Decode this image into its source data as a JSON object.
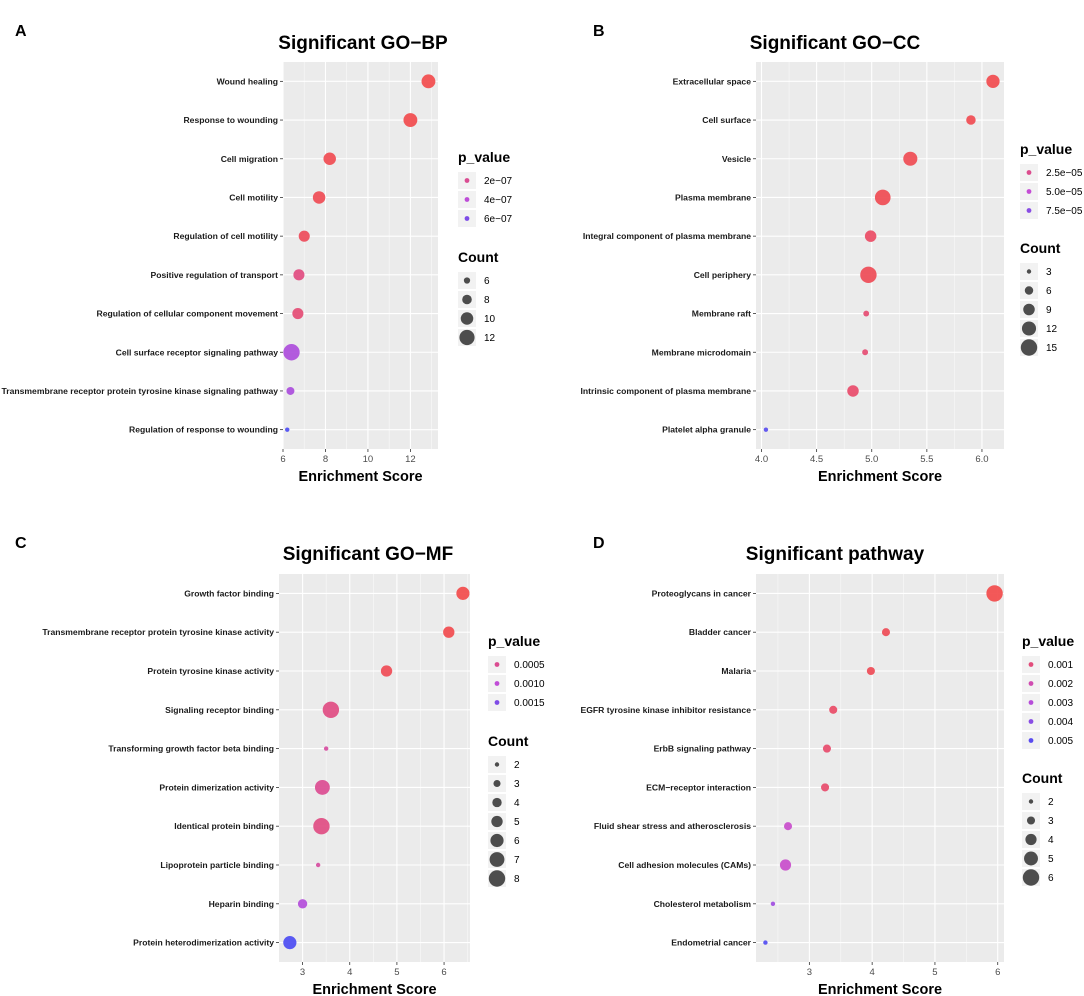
{
  "chart_data": [
    {
      "type": "scatter",
      "panel": "A",
      "title": "Significant GO−BP",
      "xlabel": "Enrichment Score",
      "xlim": [
        6,
        13.3
      ],
      "xticks": [
        6,
        8,
        10,
        12
      ],
      "xtick_labels": [
        "6",
        "8",
        "10",
        "12"
      ],
      "points": [
        {
          "term": "Wound healing",
          "x": 12.85,
          "count": 11,
          "p": 1.3e-08
        },
        {
          "term": "Response to wounding",
          "x": 12.0,
          "count": 11,
          "p": 1.5e-08
        },
        {
          "term": "Cell migration",
          "x": 8.2,
          "count": 10,
          "p": 2.5e-08
        },
        {
          "term": "Cell motility",
          "x": 7.7,
          "count": 10,
          "p": 3.5e-08
        },
        {
          "term": "Regulation of cell motility",
          "x": 7.0,
          "count": 9,
          "p": 5e-08
        },
        {
          "term": "Positive regulation of transport",
          "x": 6.75,
          "count": 9,
          "p": 1.5e-07
        },
        {
          "term": "Regulation of cellular component movement",
          "x": 6.7,
          "count": 9,
          "p": 1.2e-07
        },
        {
          "term": "Cell surface receptor signaling pathway",
          "x": 6.4,
          "count": 13,
          "p": 4.5e-07
        },
        {
          "term": "Transmembrane receptor protein tyrosine kinase signaling pathway",
          "x": 6.35,
          "count": 7,
          "p": 4.6e-07
        },
        {
          "term": "Regulation of response to wounding",
          "x": 6.2,
          "count": 5,
          "p": 7.5e-07
        }
      ],
      "legend": {
        "p_title": "p_value",
        "p_labels": [
          "2e−07",
          "4e−07",
          "6e−07"
        ],
        "p_values": [
          2e-07,
          4e-07,
          6e-07
        ],
        "p_range": [
          1e-08,
          7.5e-07
        ],
        "count_title": "Count",
        "count_labels": [
          "6",
          "8",
          "10",
          "12"
        ],
        "count_values": [
          6,
          8,
          10,
          12
        ],
        "count_range": [
          5,
          13
        ]
      }
    },
    {
      "type": "scatter",
      "panel": "B",
      "title": "Significant GO−CC",
      "xlabel": "Enrichment Score",
      "xlim": [
        3.95,
        6.2
      ],
      "xticks": [
        4.0,
        4.5,
        5.0,
        5.5,
        6.0
      ],
      "xtick_labels": [
        "4.0",
        "4.5",
        "5.0",
        "5.5",
        "6.0"
      ],
      "points": [
        {
          "term": "Extracellular space",
          "x": 6.1,
          "count": 11,
          "p": 2e-06
        },
        {
          "term": "Cell surface",
          "x": 5.9,
          "count": 7,
          "p": 3e-06
        },
        {
          "term": "Vesicle",
          "x": 5.35,
          "count": 12,
          "p": 4e-06
        },
        {
          "term": "Plasma membrane",
          "x": 5.1,
          "count": 14,
          "p": 4e-06
        },
        {
          "term": "Integral component of plasma membrane",
          "x": 4.99,
          "count": 9,
          "p": 1e-05
        },
        {
          "term": "Cell periphery",
          "x": 4.97,
          "count": 15,
          "p": 5e-06
        },
        {
          "term": "Membrane raft",
          "x": 4.95,
          "count": 4,
          "p": 1.5e-05
        },
        {
          "term": "Membrane microdomain",
          "x": 4.94,
          "count": 4,
          "p": 1.5e-05
        },
        {
          "term": "Intrinsic component of plasma membrane",
          "x": 4.83,
          "count": 9,
          "p": 1.2e-05
        },
        {
          "term": "Platelet alpha granule",
          "x": 4.04,
          "count": 3,
          "p": 9.5e-05
        }
      ],
      "legend": {
        "p_title": "p_value",
        "p_labels": [
          "2.5e−05",
          "5.0e−05",
          "7.5e−05"
        ],
        "p_values": [
          2.5e-05,
          5e-05,
          7.5e-05
        ],
        "p_range": [
          1e-06,
          0.0001
        ],
        "count_title": "Count",
        "count_labels": [
          "3",
          "6",
          "9",
          "12",
          "15"
        ],
        "count_values": [
          3,
          6,
          9,
          12,
          15
        ],
        "count_range": [
          3,
          15
        ]
      }
    },
    {
      "type": "scatter",
      "panel": "C",
      "title": "Significant GO−MF",
      "xlabel": "Enrichment Score",
      "xlim": [
        2.5,
        6.55
      ],
      "xticks": [
        3,
        4,
        5,
        6
      ],
      "xtick_labels": [
        "3",
        "4",
        "5",
        "6"
      ],
      "points": [
        {
          "term": "Growth factor binding",
          "x": 6.4,
          "count": 6,
          "p": 3e-05
        },
        {
          "term": "Transmembrane receptor protein tyrosine kinase activity",
          "x": 6.1,
          "count": 5,
          "p": 5e-05
        },
        {
          "term": "Protein tyrosine kinase activity",
          "x": 4.78,
          "count": 5,
          "p": 0.0001
        },
        {
          "term": "Signaling receptor binding",
          "x": 3.6,
          "count": 8,
          "p": 0.0004
        },
        {
          "term": "Transforming growth factor beta binding",
          "x": 3.5,
          "count": 2,
          "p": 0.0006
        },
        {
          "term": "Protein dimerization activity",
          "x": 3.42,
          "count": 7,
          "p": 0.0005
        },
        {
          "term": "Identical protein binding",
          "x": 3.4,
          "count": 8,
          "p": 0.0004
        },
        {
          "term": "Lipoprotein particle binding",
          "x": 3.33,
          "count": 2,
          "p": 0.0006
        },
        {
          "term": "Heparin binding",
          "x": 3.0,
          "count": 4,
          "p": 0.0011
        },
        {
          "term": "Protein heterodimerization activity",
          "x": 2.73,
          "count": 6,
          "p": 0.0019
        }
      ],
      "legend": {
        "p_title": "p_value",
        "p_labels": [
          "0.0005",
          "0.0010",
          "0.0015"
        ],
        "p_values": [
          0.0005,
          0.001,
          0.0015
        ],
        "p_range": [
          3e-05,
          0.0019
        ],
        "count_title": "Count",
        "count_labels": [
          "2",
          "3",
          "4",
          "5",
          "6",
          "7",
          "8"
        ],
        "count_values": [
          2,
          3,
          4,
          5,
          6,
          7,
          8
        ],
        "count_range": [
          2,
          8
        ]
      }
    },
    {
      "type": "scatter",
      "panel": "D",
      "title": "Significant pathway",
      "xlabel": "Enrichment Score",
      "xlim": [
        2.15,
        6.1
      ],
      "xticks": [
        3,
        4,
        5,
        6
      ],
      "xtick_labels": [
        "3",
        "4",
        "5",
        "6"
      ],
      "points": [
        {
          "term": "Proteoglycans in cancer",
          "x": 5.95,
          "count": 6,
          "p": 0.0001
        },
        {
          "term": "Bladder cancer",
          "x": 4.22,
          "count": 3,
          "p": 0.0003
        },
        {
          "term": "Malaria",
          "x": 3.98,
          "count": 3,
          "p": 0.0003
        },
        {
          "term": "EGFR tyrosine kinase inhibitor resistance",
          "x": 3.38,
          "count": 3,
          "p": 0.0006
        },
        {
          "term": "ErbB signaling pathway",
          "x": 3.28,
          "count": 3,
          "p": 0.0007
        },
        {
          "term": "ECM−receptor interaction",
          "x": 3.25,
          "count": 3,
          "p": 0.0007
        },
        {
          "term": "Fluid shear stress and atherosclerosis",
          "x": 2.66,
          "count": 3,
          "p": 0.0025
        },
        {
          "term": "Cell adhesion molecules (CAMs)",
          "x": 2.62,
          "count": 4,
          "p": 0.0025
        },
        {
          "term": "Cholesterol metabolism",
          "x": 2.42,
          "count": 2,
          "p": 0.0035
        },
        {
          "term": "Endometrial cancer",
          "x": 2.3,
          "count": 2,
          "p": 0.0052
        }
      ],
      "legend": {
        "p_title": "p_value",
        "p_labels": [
          "0.001",
          "0.002",
          "0.003",
          "0.004",
          "0.005"
        ],
        "p_values": [
          0.001,
          0.002,
          0.003,
          0.004,
          0.005
        ],
        "p_range": [
          0.0001,
          0.0053
        ],
        "count_title": "Count",
        "count_labels": [
          "2",
          "3",
          "4",
          "5",
          "6"
        ],
        "count_values": [
          2,
          3,
          4,
          5,
          6
        ],
        "count_range": [
          2,
          6
        ]
      }
    }
  ],
  "style": {
    "panel_background": "#ebebeb",
    "grid_color": "#ffffff",
    "color_low_p": "#f24b4b",
    "color_mid_p": "#c44dd6",
    "color_high_p": "#4c4cf2",
    "legend_key_background": "#f2f2f2",
    "legend_size_color": "#4d4d4d"
  }
}
